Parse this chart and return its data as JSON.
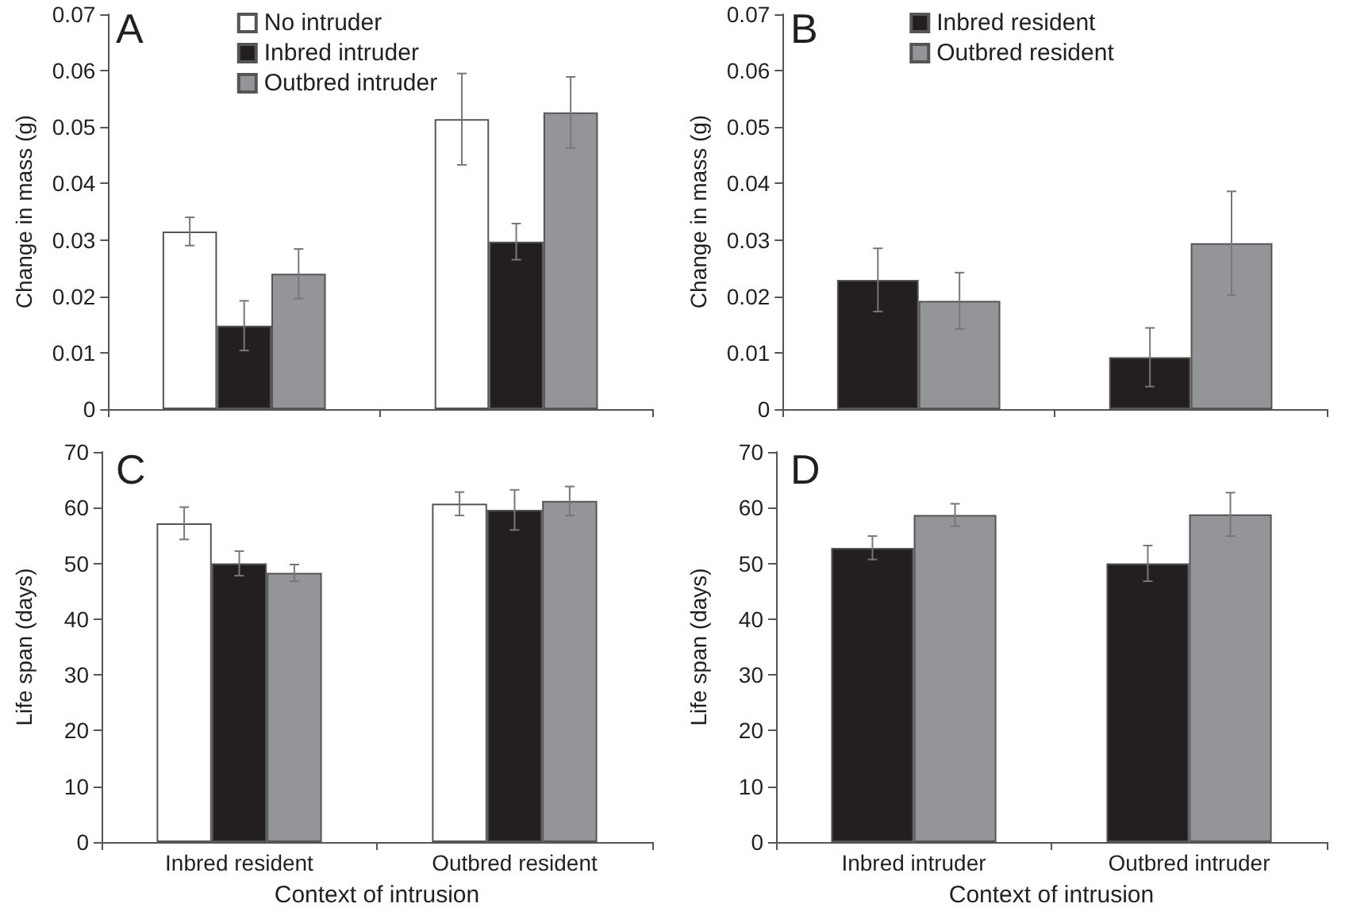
{
  "chart_data": [
    {
      "type": "bar",
      "title": "A",
      "ylabel": "Change in mass (g)",
      "categories": [
        null,
        null
      ],
      "legend": "top",
      "ylim": [
        0,
        0.07
      ],
      "yticks": [
        0,
        0.01,
        0.02,
        0.03,
        0.04,
        0.05,
        0.06,
        0.07
      ],
      "series": [
        {
          "name": "No intruder",
          "color": "#ffffff",
          "values": [
            0.0315,
            0.0514
          ],
          "errors": [
            0.0025,
            0.0081
          ]
        },
        {
          "name": "Inbred intruder",
          "color": "#231f20",
          "values": [
            0.0148,
            0.0297
          ],
          "errors": [
            0.0044,
            0.0032
          ]
        },
        {
          "name": "Outbred intruder",
          "color": "#939598",
          "values": [
            0.024,
            0.0526
          ],
          "errors": [
            0.0044,
            0.0063
          ]
        }
      ]
    },
    {
      "type": "bar",
      "title": "B",
      "ylabel": "Change in mass (g)",
      "categories": [
        null,
        null
      ],
      "legend": "top",
      "ylim": [
        0,
        0.07
      ],
      "yticks": [
        0,
        0.01,
        0.02,
        0.03,
        0.04,
        0.05,
        0.06,
        0.07
      ],
      "series": [
        {
          "name": "Inbred resident",
          "color": "#231f20",
          "values": [
            0.0229,
            0.0092
          ],
          "errors": [
            0.0056,
            0.0052
          ]
        },
        {
          "name": "Outbred resident",
          "color": "#939598",
          "values": [
            0.0192,
            0.0294
          ],
          "errors": [
            0.005,
            0.0092
          ]
        }
      ]
    },
    {
      "type": "bar",
      "title": "C",
      "xlabel": "Context of intrusion",
      "ylabel": "Life span (days)",
      "categories": [
        "Inbred resident",
        "Outbred resident"
      ],
      "ylim": [
        0,
        70
      ],
      "yticks": [
        0,
        10,
        20,
        30,
        40,
        50,
        60,
        70
      ],
      "series": [
        {
          "color": "#ffffff",
          "values": [
            57.2,
            60.7
          ],
          "errors": [
            2.9,
            2.1
          ]
        },
        {
          "color": "#231f20",
          "values": [
            50.0,
            59.6
          ],
          "errors": [
            2.2,
            3.6
          ]
        },
        {
          "color": "#939598",
          "values": [
            48.3,
            61.2
          ],
          "errors": [
            1.5,
            2.6
          ]
        }
      ]
    },
    {
      "type": "bar",
      "title": "D",
      "xlabel": "Context of intrusion",
      "ylabel": "Life span (days)",
      "categories": [
        "Inbred intruder",
        "Outbred intruder"
      ],
      "ylim": [
        0,
        70
      ],
      "yticks": [
        0,
        10,
        20,
        30,
        40,
        50,
        60,
        70
      ],
      "series": [
        {
          "color": "#231f20",
          "values": [
            52.8,
            50.0
          ],
          "errors": [
            2.1,
            3.2
          ]
        },
        {
          "color": "#939598",
          "values": [
            58.7,
            58.8
          ],
          "errors": [
            2.0,
            3.9
          ]
        }
      ]
    }
  ]
}
